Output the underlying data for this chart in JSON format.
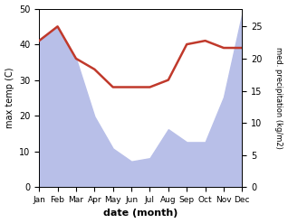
{
  "months": [
    "Jan",
    "Feb",
    "Mar",
    "Apr",
    "May",
    "Jun",
    "Jul",
    "Aug",
    "Sep",
    "Oct",
    "Nov",
    "Dec"
  ],
  "month_positions": [
    0,
    1,
    2,
    3,
    4,
    5,
    6,
    7,
    8,
    9,
    10,
    11
  ],
  "temp_max": [
    41,
    45,
    36,
    33,
    28,
    28,
    28,
    30,
    40,
    41,
    39,
    39
  ],
  "precip": [
    23,
    25,
    20,
    11,
    6,
    4,
    4.5,
    9,
    7,
    7,
    14,
    27
  ],
  "temp_color": "#c0392b",
  "precip_fill_color": "#b8bfe8",
  "ylim_temp": [
    0,
    50
  ],
  "ylim_precip": [
    0,
    27.8
  ],
  "ylabel_left": "max temp (C)",
  "ylabel_right": "med. precipitation (kg/m2)",
  "xlabel": "date (month)",
  "background_color": "#ffffff",
  "temp_linewidth": 1.8,
  "label_fontsize": 8,
  "tick_fontsize": 7,
  "xtick_fontsize": 6.5,
  "yticks_left": [
    0,
    10,
    20,
    30,
    40,
    50
  ],
  "yticks_right": [
    0,
    5,
    10,
    15,
    20,
    25
  ]
}
